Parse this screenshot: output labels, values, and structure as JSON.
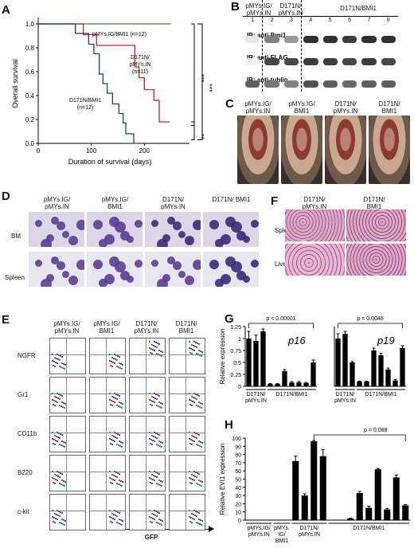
{
  "panels": {
    "A": "A",
    "B": "B",
    "C": "C",
    "D": "D",
    "E": "E",
    "F": "F",
    "G": "G",
    "H": "H"
  },
  "panel_a": {
    "ylabel": "Overall survival",
    "xlabel": "Duration of survival (days)",
    "y_ticks": [
      "0.0",
      "0.2",
      "0.4",
      "0.6",
      "0.8",
      "1.0"
    ],
    "x_ticks": [
      "0",
      "100",
      "200"
    ],
    "series_labels": {
      "green": "pMYs.IG/BMI1 (n=12)",
      "red_l1": "D171N/",
      "red_l2": "pMYs.IN",
      "red_l3": "(n=11)",
      "blue_l1": "D171N/BMI1",
      "blue_l2": "(n=12)"
    },
    "sig": [
      "***",
      "***",
      "**"
    ]
  },
  "panel_b": {
    "groups": [
      "pMYs.IG/\npMYs.IN",
      "D171N/\npMYs.IN",
      "D171N/BMI1"
    ],
    "group1_l1": "pMYs.IG/",
    "group1_l2": "pMYs.IN",
    "group2_l1": "D171N/",
    "group2_l2": "pMYs.IN",
    "group3": "D171N/BMI1",
    "lanes": [
      "1",
      "2",
      "3",
      "4",
      "5",
      "6",
      "7",
      "8"
    ],
    "blots": [
      "IB: anti-Bmi1",
      "IB: anti-FLAG",
      "IB: anti-tublin"
    ]
  },
  "panel_c": {
    "cols": [
      {
        "l1": "pMYs.IG/",
        "l2": "pMYs.IN"
      },
      {
        "l1": "pMYs.IG/",
        "l2": "BMI1"
      },
      {
        "l1": "D171N/",
        "l2": "pMYs.IN"
      },
      {
        "l1": "D171N/",
        "l2": "BMI1"
      }
    ]
  },
  "panel_d": {
    "cols": [
      {
        "l1": "pMYs.IG/",
        "l2": "pMYs.IN"
      },
      {
        "l1": "pMYs.IG/",
        "l2": "BMI1"
      },
      {
        "l1": "D171N/",
        "l2": "pMYs.IN"
      },
      {
        "l1": "D171N/ BMI1",
        "l2": ""
      }
    ],
    "rows": [
      "BM",
      "Spleen"
    ]
  },
  "panel_e": {
    "cols": [
      {
        "l1": "pMYs.IG/",
        "l2": "pMYs.IN"
      },
      {
        "l1": "pMYs.IG/",
        "l2": "BMI1"
      },
      {
        "l1": "D171N/",
        "l2": "pMYs.IN"
      },
      {
        "l1": "D171N/",
        "l2": "BMI1"
      }
    ],
    "rows": [
      "NGFR",
      "Gr1",
      "CD11b",
      "B220",
      "c-kit"
    ],
    "xlabel": "GFP"
  },
  "panel_f": {
    "cols": [
      {
        "l1": "D171N/",
        "l2": "pMYs.IN"
      },
      {
        "l1": "D171N/",
        "l2": "BMI1"
      }
    ],
    "rows": [
      "Spleen",
      "Liver"
    ]
  },
  "chart_data": [
    {
      "type": "line",
      "title": "",
      "xlabel": "Duration of survival (days)",
      "ylabel": "Overall survival",
      "xlim": [
        0,
        270
      ],
      "ylim": [
        0,
        1.0
      ],
      "series": [
        {
          "name": "pMYs.IG/BMI1 (n=12)",
          "color": "#2a8a2a",
          "x": [
            0,
            250
          ],
          "y": [
            1.0,
            1.0
          ]
        },
        {
          "name": "D171N/ pMYs.IN (n=11)",
          "color": "#cc2222",
          "x": [
            0,
            85,
            85,
            110,
            110,
            182,
            182,
            190,
            190,
            200,
            200,
            218,
            218,
            228,
            228,
            248
          ],
          "y": [
            1.0,
            1.0,
            0.91,
            0.91,
            0.82,
            0.82,
            0.64,
            0.64,
            0.55,
            0.55,
            0.45,
            0.45,
            0.36,
            0.36,
            0.18,
            0.18
          ]
        },
        {
          "name": "D171N/BMI1 (n=12)",
          "color": "#1f3f7a",
          "x": [
            0,
            70,
            70,
            95,
            95,
            105,
            105,
            115,
            115,
            122,
            122,
            130,
            130,
            140,
            140,
            152,
            152,
            160,
            160,
            165,
            165,
            172,
            172,
            180,
            180,
            190,
            190,
            200
          ],
          "y": [
            1.0,
            1.0,
            0.92,
            0.92,
            0.83,
            0.83,
            0.75,
            0.75,
            0.58,
            0.58,
            0.5,
            0.5,
            0.42,
            0.42,
            0.33,
            0.33,
            0.25,
            0.25,
            0.17,
            0.17,
            0.08,
            0.08,
            0.08,
            0.08,
            0.0,
            0.0,
            0.0,
            0.0
          ]
        }
      ],
      "significance": [
        "***",
        "***",
        "**"
      ]
    },
    {
      "type": "bar",
      "title": "p16",
      "ylabel": "Relative expression",
      "ylim": [
        0,
        1.25
      ],
      "yticks": [
        "0",
        "0.25",
        "0.5",
        "0.75",
        "1",
        "1.25"
      ],
      "values": [
        1.0,
        0.95,
        1.15,
        0.05,
        0.05,
        0.32,
        0.08,
        0.08,
        0.07,
        0.5
      ],
      "errors": [
        0.15,
        0.12,
        0.05,
        0.01,
        0.01,
        0.03,
        0.02,
        0.02,
        0.01,
        0.05
      ],
      "groups": [
        {
          "l1": "D171N/",
          "l2": "pMYs.IN",
          "count": 3
        },
        {
          "l1": "D171N/BMI1",
          "l2": "",
          "count": 7
        }
      ],
      "pvalue": "p < 0.00001"
    },
    {
      "type": "bar",
      "title": "p19",
      "ylim": [
        0,
        1.25
      ],
      "values": [
        1.0,
        1.1,
        0.5,
        0.1,
        0.1,
        0.75,
        0.65,
        0.35,
        0.12,
        0.8
      ],
      "errors": [
        0.1,
        0.05,
        0.02,
        0.01,
        0.01,
        0.05,
        0.04,
        0.03,
        0.02,
        0.05
      ],
      "groups": [
        {
          "l1": "D171N/",
          "l2": "pMYs.IN",
          "count": 3
        },
        {
          "l1": "D171N/BMI1",
          "l2": "",
          "count": 7
        }
      ],
      "pvalue": "p = 0.0046"
    },
    {
      "type": "bar",
      "title": "",
      "ylabel": "Relative EVI1 expression",
      "ylim": [
        0,
        100
      ],
      "yticks": [
        "0",
        "10",
        "20",
        "30",
        "40",
        "50",
        "60",
        "70",
        "80",
        "90",
        "100"
      ],
      "values": [
        0.5,
        0.5,
        0.5,
        0.5,
        0.5,
        72,
        30,
        96,
        78,
        0.5,
        0.5,
        2,
        33,
        15,
        62,
        13,
        52,
        18
      ],
      "errors": [
        0,
        0,
        0,
        0,
        0,
        6,
        2,
        1,
        8,
        0,
        0,
        0.5,
        2,
        2,
        1,
        1,
        3,
        1
      ],
      "groups": [
        {
          "l1": "pMYs.IG/",
          "l2": "pMYs.IN",
          "count": 3
        },
        {
          "l1": "pMYs.",
          "l2": "IG/",
          "l3": "BMI1",
          "count": 2
        },
        {
          "l1": "D171N/",
          "l2": "pMYs.IN",
          "count": 4
        },
        {
          "l1": "D171N/BMI1",
          "l2": "",
          "count": 9
        }
      ],
      "pvalue": "p = 0.088"
    }
  ]
}
